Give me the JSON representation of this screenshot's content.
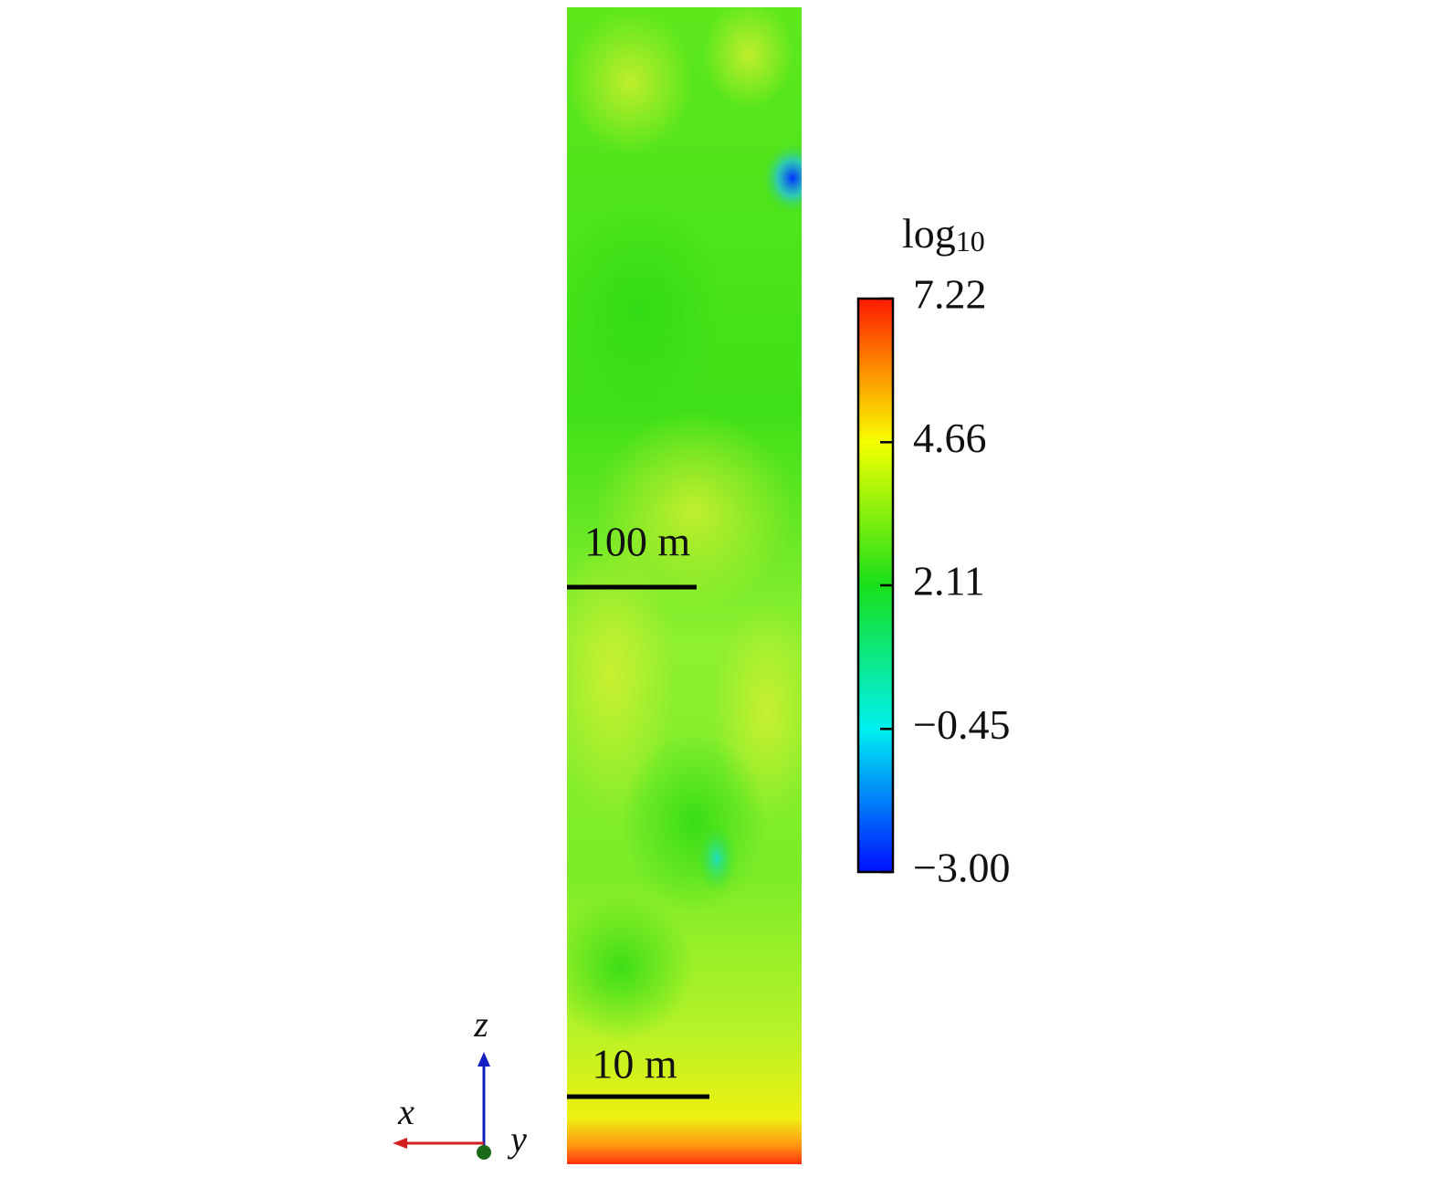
{
  "colorbar": {
    "title": "log",
    "title_subscript": "10",
    "range": [
      -3,
      7.22
    ],
    "ticks": [
      7.22,
      4.66,
      2.11,
      {
        "value": -0.45,
        "label": "−0.45"
      },
      {
        "value": -3,
        "label": "−3.00"
      }
    ]
  },
  "scale_bars": [
    {
      "label": "100 m"
    },
    {
      "label": "10 m"
    }
  ],
  "axes": {
    "x": "x",
    "y": "y",
    "z": "z"
  }
}
